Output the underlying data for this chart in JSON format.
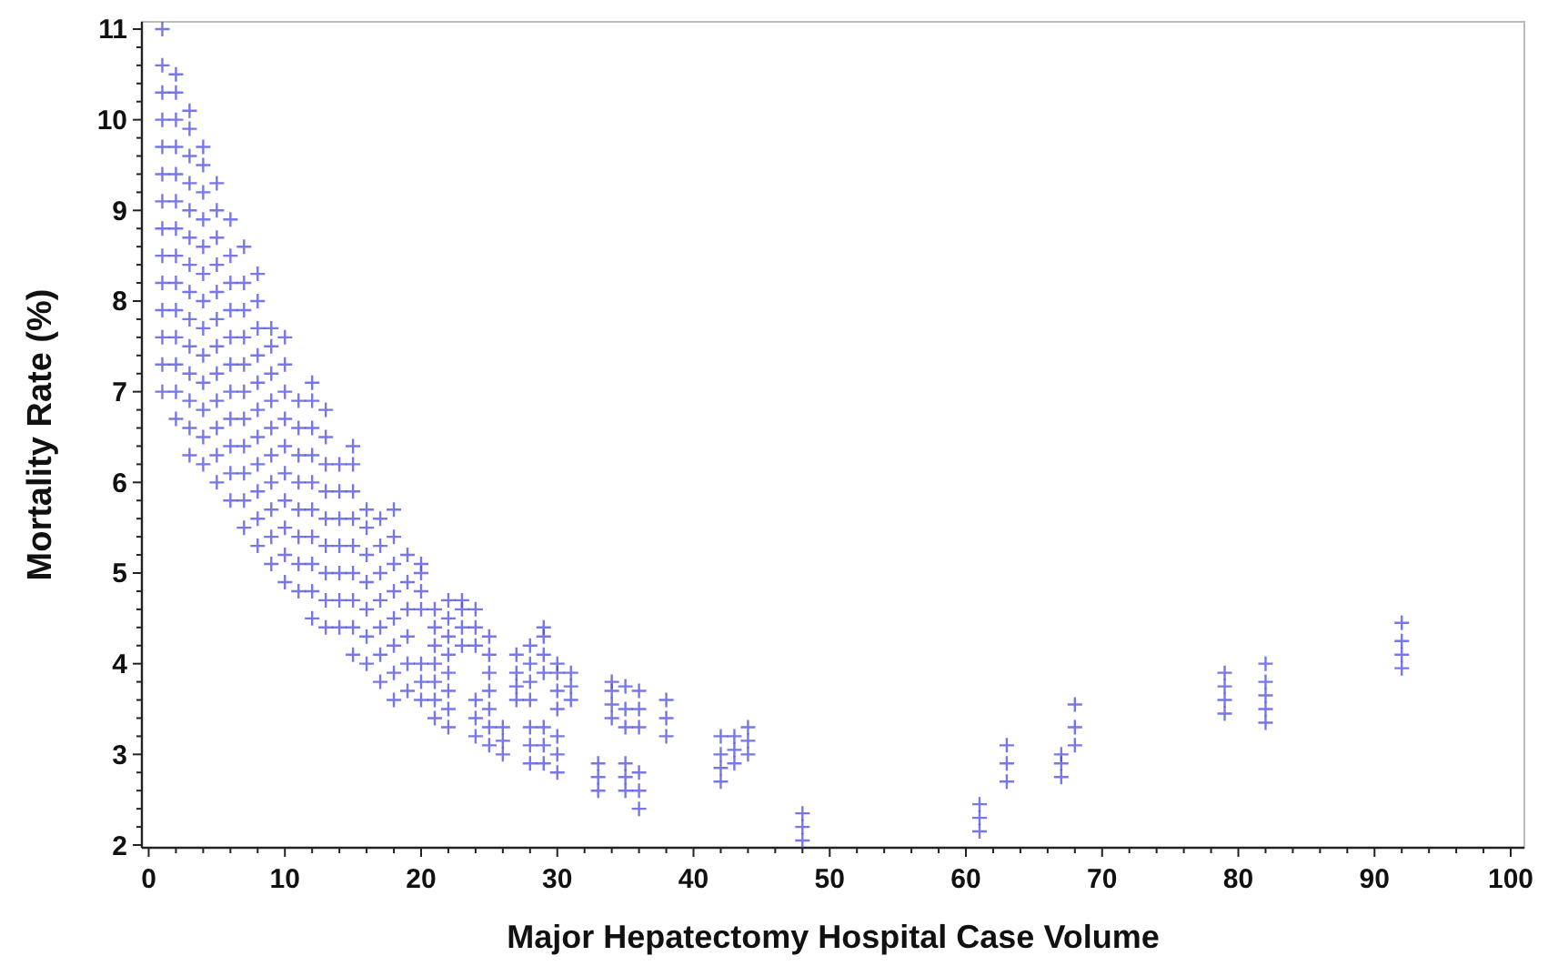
{
  "chart_data": {
    "type": "scatter",
    "xlabel": "Major Hepatectomy Hospital Case Volume",
    "ylabel": "Mortality Rate (%)",
    "marker": "cross",
    "grid": false,
    "xlim": [
      -0.5,
      101
    ],
    "ylim": [
      1.97,
      11.08
    ],
    "xticks": [
      0,
      {
        "value": 2,
        "label": null
      },
      {
        "value": 4,
        "label": null
      },
      {
        "value": 6,
        "label": null
      },
      {
        "value": 8,
        "label": null
      },
      10,
      {
        "value": 12,
        "label": null
      },
      {
        "value": 14,
        "label": null
      },
      {
        "value": 16,
        "label": null
      },
      {
        "value": 18,
        "label": null
      },
      20,
      {
        "value": 22,
        "label": null
      },
      {
        "value": 24,
        "label": null
      },
      {
        "value": 26,
        "label": null
      },
      {
        "value": 28,
        "label": null
      },
      30,
      {
        "value": 32,
        "label": null
      },
      {
        "value": 34,
        "label": null
      },
      {
        "value": 36,
        "label": null
      },
      {
        "value": 38,
        "label": null
      },
      40,
      {
        "value": 42,
        "label": null
      },
      {
        "value": 44,
        "label": null
      },
      {
        "value": 46,
        "label": null
      },
      {
        "value": 48,
        "label": null
      },
      50,
      {
        "value": 52,
        "label": null
      },
      {
        "value": 54,
        "label": null
      },
      {
        "value": 56,
        "label": null
      },
      {
        "value": 58,
        "label": null
      },
      60,
      {
        "value": 62,
        "label": null
      },
      {
        "value": 64,
        "label": null
      },
      {
        "value": 66,
        "label": null
      },
      {
        "value": 68,
        "label": null
      },
      70,
      {
        "value": 72,
        "label": null
      },
      {
        "value": 74,
        "label": null
      },
      {
        "value": 76,
        "label": null
      },
      {
        "value": 78,
        "label": null
      },
      80,
      {
        "value": 82,
        "label": null
      },
      {
        "value": 84,
        "label": null
      },
      {
        "value": 86,
        "label": null
      },
      {
        "value": 88,
        "label": null
      },
      90,
      {
        "value": 92,
        "label": null
      },
      {
        "value": 94,
        "label": null
      },
      {
        "value": 96,
        "label": null
      },
      {
        "value": 98,
        "label": null
      },
      100
    ],
    "yticks": [
      2,
      {
        "value": 2.2,
        "label": null
      },
      {
        "value": 2.4,
        "label": null
      },
      {
        "value": 2.6,
        "label": null
      },
      {
        "value": 2.8,
        "label": null
      },
      3,
      {
        "value": 3.2,
        "label": null
      },
      {
        "value": 3.4,
        "label": null
      },
      {
        "value": 3.6,
        "label": null
      },
      {
        "value": 3.8,
        "label": null
      },
      4,
      {
        "value": 4.2,
        "label": null
      },
      {
        "value": 4.4,
        "label": null
      },
      {
        "value": 4.6,
        "label": null
      },
      {
        "value": 4.8,
        "label": null
      },
      5,
      {
        "value": 5.2,
        "label": null
      },
      {
        "value": 5.4,
        "label": null
      },
      {
        "value": 5.6,
        "label": null
      },
      {
        "value": 5.8,
        "label": null
      },
      6,
      {
        "value": 6.2,
        "label": null
      },
      {
        "value": 6.4,
        "label": null
      },
      {
        "value": 6.6,
        "label": null
      },
      {
        "value": 6.8,
        "label": null
      },
      7,
      {
        "value": 7.2,
        "label": null
      },
      {
        "value": 7.4,
        "label": null
      },
      {
        "value": 7.6,
        "label": null
      },
      {
        "value": 7.8,
        "label": null
      },
      8,
      {
        "value": 8.2,
        "label": null
      },
      {
        "value": 8.4,
        "label": null
      },
      {
        "value": 8.6,
        "label": null
      },
      {
        "value": 8.8,
        "label": null
      },
      9,
      {
        "value": 9.2,
        "label": null
      },
      {
        "value": 9.4,
        "label": null
      },
      {
        "value": 9.6,
        "label": null
      },
      {
        "value": 9.8,
        "label": null
      },
      10,
      {
        "value": 10.2,
        "label": null
      },
      {
        "value": 10.4,
        "label": null
      },
      {
        "value": 10.6,
        "label": null
      },
      {
        "value": 10.8,
        "label": null
      },
      11
    ],
    "series": [
      {
        "color": "#4a4ae0",
        "x": [
          1,
          1,
          1,
          1,
          1,
          1,
          1,
          1,
          1,
          1,
          1,
          1,
          1,
          1,
          2,
          2,
          2,
          2,
          2,
          2,
          2,
          2,
          2,
          2,
          2,
          2,
          2,
          2,
          3,
          3,
          3,
          3,
          3,
          3,
          3,
          3,
          3,
          3,
          3,
          3,
          3,
          3,
          4,
          4,
          4,
          4,
          4,
          4,
          4,
          4,
          4,
          4,
          4,
          4,
          4,
          5,
          5,
          5,
          5,
          5,
          5,
          5,
          5,
          5,
          5,
          5,
          5,
          6,
          6,
          6,
          6,
          6,
          6,
          6,
          6,
          6,
          6,
          6,
          7,
          7,
          7,
          7,
          7,
          7,
          7,
          7,
          7,
          7,
          7,
          8,
          8,
          8,
          8,
          8,
          8,
          8,
          8,
          8,
          8,
          8,
          9,
          9,
          9,
          9,
          9,
          9,
          9,
          9,
          9,
          9,
          10,
          10,
          10,
          10,
          10,
          10,
          10,
          10,
          10,
          10,
          11,
          11,
          11,
          11,
          11,
          11,
          11,
          11,
          12,
          12,
          12,
          12,
          12,
          12,
          12,
          12,
          12,
          12,
          13,
          13,
          13,
          13,
          13,
          13,
          13,
          13,
          13,
          14,
          14,
          14,
          14,
          14,
          14,
          14,
          15,
          15,
          15,
          15,
          15,
          15,
          15,
          15,
          15,
          16,
          16,
          16,
          16,
          16,
          16,
          16,
          17,
          17,
          17,
          17,
          17,
          17,
          17,
          18,
          18,
          18,
          18,
          18,
          18,
          18,
          18,
          19,
          19,
          19,
          19,
          19,
          19,
          20,
          20,
          20,
          20,
          20,
          20,
          20,
          21,
          21,
          21,
          21,
          21,
          21,
          21,
          22,
          22,
          22,
          22,
          22,
          22,
          22,
          22,
          23,
          23,
          23,
          23,
          24,
          24,
          24,
          24,
          24,
          24,
          25,
          25,
          25,
          25,
          25,
          25,
          25,
          26,
          26,
          26,
          27,
          27,
          27,
          27,
          28,
          28,
          28,
          28,
          28,
          28,
          28,
          29,
          29,
          29,
          29,
          29,
          29,
          29,
          30,
          30,
          30,
          30,
          30,
          30,
          30,
          31,
          31,
          31,
          33,
          33,
          33,
          34,
          34,
          34,
          34,
          35,
          35,
          35,
          35,
          35,
          35,
          36,
          36,
          36,
          36,
          36,
          36,
          38,
          38,
          38,
          42,
          42,
          42,
          42,
          43,
          43,
          43,
          44,
          44,
          44,
          48,
          48,
          48,
          61,
          61,
          61,
          63,
          63,
          63,
          67,
          67,
          67,
          68,
          68,
          68,
          79,
          79,
          79,
          79,
          82,
          82,
          82,
          82,
          82,
          92,
          92,
          92,
          92
        ],
        "values": [
          7.0,
          7.3,
          7.6,
          7.9,
          8.2,
          8.5,
          8.8,
          9.1,
          9.4,
          9.7,
          10.0,
          10.3,
          10.6,
          11.0,
          6.7,
          7.0,
          7.3,
          7.6,
          7.9,
          8.2,
          8.5,
          8.8,
          9.1,
          9.4,
          9.7,
          10.0,
          10.3,
          10.5,
          6.3,
          6.6,
          6.9,
          7.2,
          7.5,
          7.8,
          8.1,
          8.4,
          8.7,
          9.0,
          9.3,
          9.6,
          9.9,
          10.1,
          6.2,
          6.5,
          6.8,
          7.1,
          7.4,
          7.7,
          8.0,
          8.3,
          8.6,
          8.9,
          9.2,
          9.5,
          9.7,
          6.0,
          6.3,
          6.6,
          6.9,
          7.2,
          7.5,
          7.8,
          8.1,
          8.4,
          8.7,
          9.0,
          9.3,
          5.8,
          6.1,
          6.4,
          6.7,
          7.0,
          7.3,
          7.6,
          7.9,
          8.2,
          8.5,
          8.9,
          5.5,
          5.8,
          6.1,
          6.4,
          6.7,
          7.0,
          7.3,
          7.6,
          7.9,
          8.2,
          8.6,
          5.3,
          5.6,
          5.9,
          6.2,
          6.5,
          6.8,
          7.1,
          7.4,
          7.7,
          8.0,
          8.3,
          5.1,
          5.4,
          5.7,
          6.0,
          6.3,
          6.6,
          6.9,
          7.2,
          7.5,
          7.7,
          4.9,
          5.2,
          5.5,
          5.8,
          6.1,
          6.4,
          6.7,
          7.0,
          7.3,
          7.6,
          4.8,
          5.1,
          5.4,
          5.7,
          6.0,
          6.3,
          6.6,
          6.9,
          4.5,
          4.8,
          5.1,
          5.4,
          5.7,
          6.0,
          6.3,
          6.6,
          6.9,
          7.1,
          4.4,
          4.7,
          5.0,
          5.3,
          5.6,
          5.9,
          6.2,
          6.5,
          6.8,
          4.4,
          4.7,
          5.0,
          5.3,
          5.6,
          5.9,
          6.2,
          4.1,
          4.4,
          4.7,
          5.0,
          5.3,
          5.6,
          5.9,
          6.2,
          6.4,
          4.0,
          4.3,
          4.6,
          4.9,
          5.2,
          5.5,
          5.7,
          3.8,
          4.1,
          4.4,
          4.7,
          5.0,
          5.3,
          5.6,
          3.6,
          3.9,
          4.2,
          4.5,
          4.8,
          5.1,
          5.4,
          5.7,
          3.7,
          4.0,
          4.3,
          4.6,
          4.9,
          5.2,
          3.6,
          3.8,
          4.0,
          4.6,
          4.8,
          5.0,
          5.1,
          3.4,
          3.6,
          3.8,
          4.0,
          4.2,
          4.4,
          4.6,
          3.3,
          3.5,
          3.7,
          3.9,
          4.1,
          4.3,
          4.5,
          4.7,
          4.2,
          4.4,
          4.6,
          4.7,
          3.2,
          3.4,
          3.6,
          4.2,
          4.4,
          4.6,
          3.1,
          3.3,
          3.5,
          3.7,
          3.9,
          4.1,
          4.3,
          3.0,
          3.15,
          3.3,
          3.6,
          3.75,
          3.9,
          4.1,
          2.9,
          3.1,
          3.3,
          3.6,
          3.8,
          4.0,
          4.2,
          2.9,
          3.1,
          3.3,
          3.9,
          4.1,
          4.3,
          4.4,
          2.8,
          3.0,
          3.2,
          3.5,
          3.7,
          3.9,
          4.0,
          3.6,
          3.75,
          3.9,
          2.6,
          2.75,
          2.9,
          3.4,
          3.55,
          3.7,
          3.8,
          2.6,
          2.75,
          2.9,
          3.3,
          3.5,
          3.75,
          2.4,
          2.6,
          2.8,
          3.3,
          3.5,
          3.7,
          3.2,
          3.4,
          3.6,
          2.7,
          2.85,
          3.0,
          3.2,
          2.9,
          3.05,
          3.2,
          3.0,
          3.15,
          3.3,
          2.05,
          2.2,
          2.35,
          2.15,
          2.3,
          2.45,
          2.7,
          2.9,
          3.1,
          2.75,
          2.9,
          3.0,
          3.1,
          3.3,
          3.55,
          3.45,
          3.6,
          3.75,
          3.9,
          3.35,
          3.5,
          3.65,
          3.8,
          4.0,
          3.95,
          4.1,
          4.25,
          4.45
        ]
      }
    ]
  }
}
